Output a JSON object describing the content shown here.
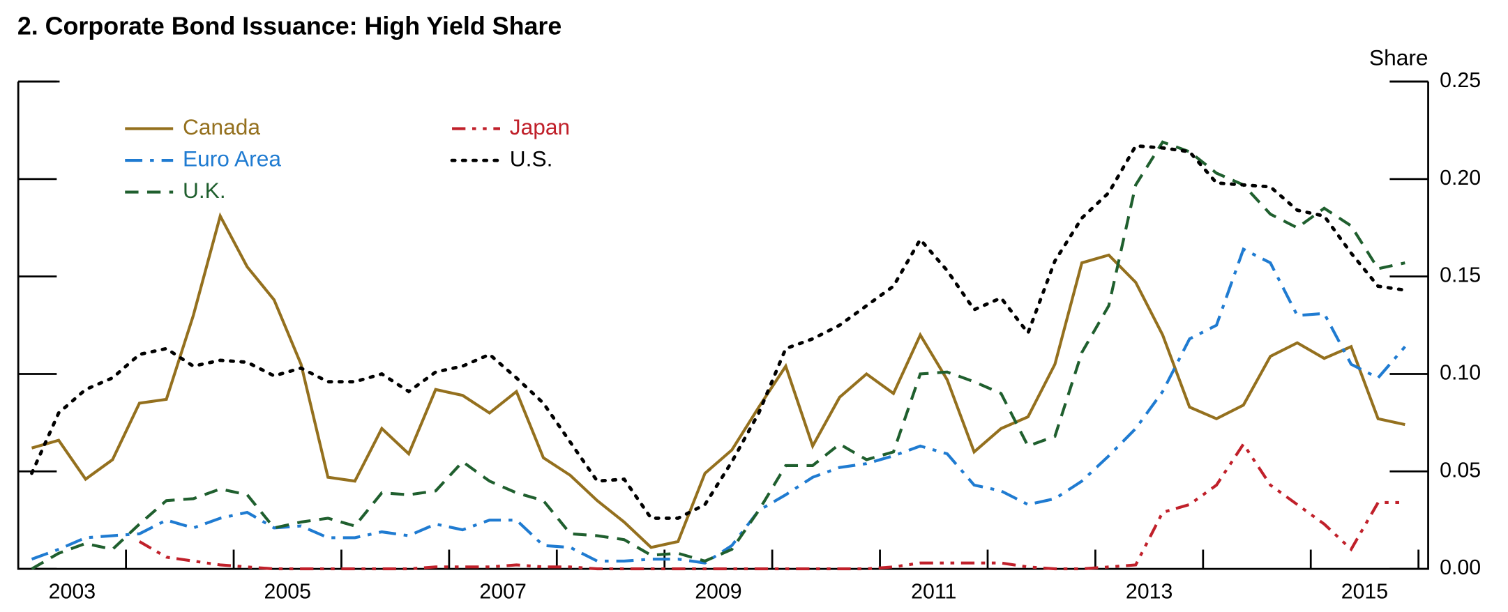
{
  "chart_data": {
    "type": "line",
    "title": "2. Corporate Bond Issuance: High Yield Share",
    "y_axis_label": "Share",
    "x": [
      2003.125,
      2003.375,
      2003.625,
      2003.875,
      2004.125,
      2004.375,
      2004.625,
      2004.875,
      2005.125,
      2005.375,
      2005.625,
      2005.875,
      2006.125,
      2006.375,
      2006.625,
      2006.875,
      2007.125,
      2007.375,
      2007.625,
      2007.875,
      2008.125,
      2008.375,
      2008.625,
      2008.875,
      2009.125,
      2009.375,
      2009.625,
      2009.875,
      2010.125,
      2010.375,
      2010.625,
      2010.875,
      2011.125,
      2011.375,
      2011.625,
      2011.875,
      2012.125,
      2012.375,
      2012.625,
      2012.875,
      2013.125,
      2013.375,
      2013.625,
      2013.875,
      2014.125,
      2014.375,
      2014.625,
      2014.875,
      2015.125,
      2015.375,
      2015.625,
      2015.875
    ],
    "series": [
      {
        "name": "Canada",
        "color": "#94701e",
        "dash": "solid",
        "values": [
          0.062,
          0.066,
          0.046,
          0.056,
          0.085,
          0.087,
          0.13,
          0.181,
          0.155,
          0.138,
          0.105,
          0.047,
          0.045,
          0.072,
          0.059,
          0.092,
          0.089,
          0.08,
          0.091,
          0.057,
          0.048,
          0.035,
          0.024,
          0.011,
          0.014,
          0.049,
          0.061,
          0.083,
          0.104,
          0.063,
          0.088,
          0.1,
          0.09,
          0.12,
          0.097,
          0.06,
          0.072,
          0.078,
          0.105,
          0.157,
          0.161,
          0.147,
          0.12,
          0.083,
          0.077,
          0.084,
          0.109,
          0.116,
          0.108,
          0.114,
          0.077,
          0.074
        ]
      },
      {
        "name": "Euro Area",
        "color": "#1f7bd1",
        "dash": "dashdot",
        "values": [
          0.005,
          0.01,
          0.016,
          0.017,
          0.018,
          0.025,
          0.021,
          0.026,
          0.029,
          0.021,
          0.022,
          0.016,
          0.016,
          0.019,
          0.017,
          0.023,
          0.02,
          0.025,
          0.025,
          0.012,
          0.011,
          0.004,
          0.004,
          0.005,
          0.005,
          0.003,
          0.012,
          0.03,
          0.038,
          0.047,
          0.052,
          0.054,
          0.058,
          0.063,
          0.059,
          0.043,
          0.04,
          0.033,
          0.036,
          0.045,
          0.058,
          0.072,
          0.091,
          0.118,
          0.125,
          0.164,
          0.157,
          0.13,
          0.131,
          0.105,
          0.098,
          0.114
        ]
      },
      {
        "name": "U.K.",
        "color": "#1f5f2e",
        "dash": "dashed",
        "values": [
          0.0,
          0.008,
          0.013,
          0.01,
          0.023,
          0.035,
          0.036,
          0.041,
          0.038,
          0.021,
          0.024,
          0.026,
          0.022,
          0.039,
          0.038,
          0.04,
          0.055,
          0.045,
          0.039,
          0.035,
          0.018,
          0.017,
          0.015,
          0.007,
          0.008,
          0.004,
          0.01,
          0.03,
          0.053,
          0.053,
          0.064,
          0.056,
          0.06,
          0.1,
          0.101,
          0.096,
          0.09,
          0.063,
          0.068,
          0.111,
          0.135,
          0.197,
          0.219,
          0.214,
          0.203,
          0.197,
          0.182,
          0.175,
          0.185,
          0.176,
          0.154,
          0.157
        ]
      },
      {
        "name": "Japan",
        "color": "#c0202a",
        "dash": "dashdotdot",
        "values": [
          null,
          null,
          null,
          null,
          0.014,
          0.006,
          0.004,
          0.002,
          0.001,
          0,
          0,
          0,
          0,
          0,
          0,
          0.001,
          0.001,
          0.001,
          0.002,
          0.001,
          0.001,
          0,
          0,
          0,
          0,
          0,
          0,
          0,
          0,
          0,
          0,
          0,
          0.001,
          0.003,
          0.003,
          0.003,
          0.003,
          0.001,
          0,
          0,
          0.001,
          0.002,
          0.029,
          0.033,
          0.043,
          0.064,
          0.043,
          0.033,
          0.023,
          0.01,
          0.034,
          0.034
        ]
      },
      {
        "name": "U.S.",
        "color": "#000000",
        "dash": "dotted",
        "values": [
          0.049,
          0.08,
          0.092,
          0.098,
          0.11,
          0.113,
          0.104,
          0.107,
          0.106,
          0.099,
          0.103,
          0.096,
          0.096,
          0.1,
          0.091,
          0.101,
          0.104,
          0.11,
          0.098,
          0.085,
          0.065,
          0.045,
          0.046,
          0.026,
          0.026,
          0.033,
          0.055,
          0.08,
          0.113,
          0.118,
          0.125,
          0.135,
          0.145,
          0.169,
          0.153,
          0.133,
          0.139,
          0.121,
          0.158,
          0.18,
          0.193,
          0.217,
          0.216,
          0.214,
          0.198,
          0.197,
          0.196,
          0.184,
          0.181,
          0.162,
          0.145,
          0.143
        ]
      }
    ],
    "xlim": [
      2003,
      2016.09
    ],
    "xticks": [
      {
        "value": 2003,
        "label": "2003"
      },
      {
        "value": 2005,
        "label": "2005"
      },
      {
        "value": 2007,
        "label": "2007"
      },
      {
        "value": 2009,
        "label": "2009"
      },
      {
        "value": 2011,
        "label": "2011"
      },
      {
        "value": 2013,
        "label": "2013"
      },
      {
        "value": 2015,
        "label": "2015"
      }
    ],
    "ylim": [
      0,
      0.25
    ],
    "yticks": [
      {
        "value": 0,
        "label": "0.00"
      },
      {
        "value": 0.05,
        "label": "0.05"
      },
      {
        "value": 0.1,
        "label": "0.10"
      },
      {
        "value": 0.15,
        "label": "0.15"
      },
      {
        "value": 0.2,
        "label": "0.20"
      },
      {
        "value": 0.25,
        "label": "0.25"
      }
    ],
    "y_axis_side": "right",
    "grid": false
  }
}
